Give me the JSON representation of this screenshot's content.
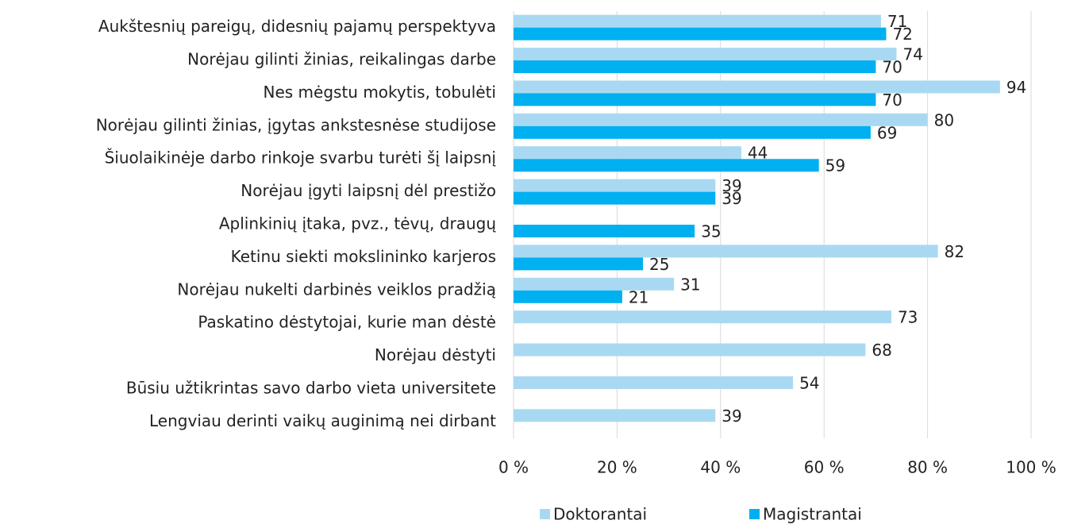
{
  "chart_data": {
    "type": "hbar",
    "categories": [
      "Aukštesnių pareigų, didesnių pajamų perspektyva",
      "Norėjau gilinti žinias, reikalingas darbe",
      "Nes mėgstu mokytis, tobulėti",
      "Norėjau gilinti žinias, įgytas ankstesnėse studijose",
      "Šiuolaikinėje darbo rinkoje svarbu turėti šį laipsnį",
      "Norėjau įgyti laipsnį dėl prestižo",
      "Aplinkinių įtaka, pvz., tėvų, draugų",
      "Ketinu siekti mokslininko karjeros",
      "Norėjau nukelti darbinės veiklos pradžią",
      "Paskatino dėstytojai, kurie man dėstė",
      "Norėjau dėstyti",
      "Būsiu užtikrintas savo darbo vieta universitete",
      "Lengviau derinti vaikų auginimą nei dirbant"
    ],
    "series": [
      {
        "name": "Doktorantai",
        "color": "#a9d9f2",
        "values": [
          71,
          74,
          94,
          80,
          44,
          39,
          null,
          82,
          31,
          73,
          68,
          54,
          39
        ]
      },
      {
        "name": "Magistrantai",
        "color": "#00b0f0",
        "values": [
          72,
          70,
          70,
          69,
          59,
          39,
          35,
          25,
          21,
          null,
          null,
          null,
          null
        ]
      }
    ],
    "xlim": [
      0,
      100
    ],
    "xticks": [
      {
        "value": 0,
        "label": "0 %"
      },
      {
        "value": 20,
        "label": "20 %"
      },
      {
        "value": 40,
        "label": "40 %"
      },
      {
        "value": 60,
        "label": "60 %"
      },
      {
        "value": 80,
        "label": "80 %"
      },
      {
        "value": 100,
        "label": "100 %"
      }
    ],
    "grid": true,
    "legend": "bottom"
  }
}
